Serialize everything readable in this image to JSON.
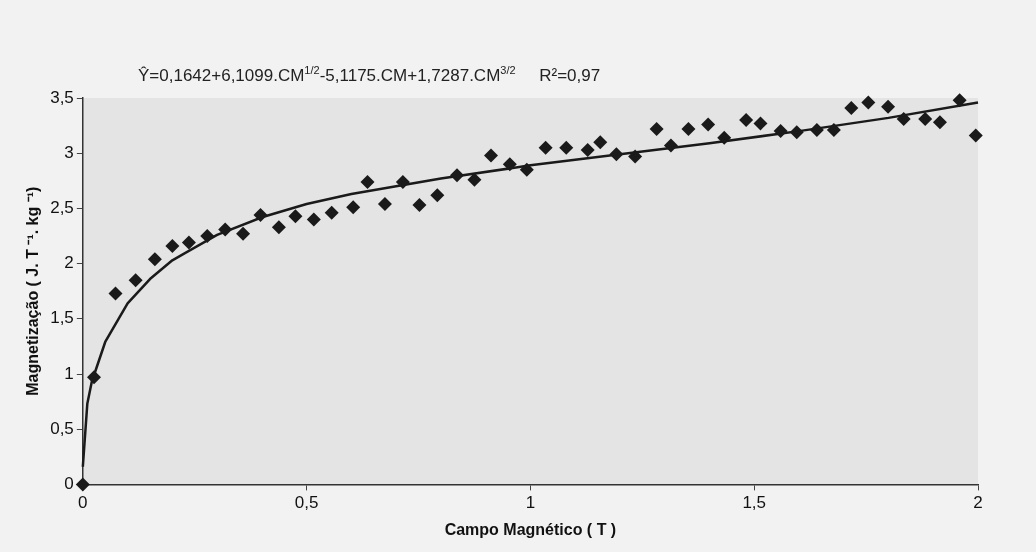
{
  "chart_data": {
    "type": "scatter",
    "title": "Ŷ=0,1642+6,1099.CM$^{1/2}$-5,1175.CM+1,7287.CM$^{3/2}$     R²=0,97",
    "xlabel": "Campo Magnético ( T )",
    "ylabel": "Magnetização ( J. T ⁻¹. kg ⁻¹)",
    "xlim": [
      0,
      2
    ],
    "ylim": [
      0,
      3.5
    ],
    "xticks": [
      0,
      {
        "value": 0.5,
        "label": "0,5"
      },
      1,
      {
        "value": 1.5,
        "label": "1,5"
      },
      2
    ],
    "yticks": [
      0,
      {
        "value": 0.5,
        "label": "0,5"
      },
      1,
      {
        "value": 1.5,
        "label": "1,5"
      },
      2,
      {
        "value": 2.5,
        "label": "2,5"
      },
      3,
      {
        "value": 3.5,
        "label": "3,5"
      }
    ],
    "grid": false,
    "legend": false,
    "marker": "diamond",
    "series": [
      {
        "color": "#1a1a1a",
        "x": [
          0,
          0.025,
          0.073,
          0.118,
          0.161,
          0.2,
          0.237,
          0.278,
          0.318,
          0.358,
          0.397,
          0.438,
          0.475,
          0.516,
          0.556,
          0.604,
          0.636,
          0.675,
          0.715,
          0.752,
          0.792,
          0.836,
          0.875,
          0.912,
          0.954,
          0.992,
          1.034,
          1.08,
          1.128,
          1.156,
          1.192,
          1.234,
          1.282,
          1.314,
          1.353,
          1.397,
          1.433,
          1.482,
          1.514,
          1.559,
          1.595,
          1.64,
          1.678,
          1.717,
          1.755,
          1.799,
          1.834,
          1.882,
          1.915,
          1.959,
          1.995
        ],
        "values": [
          0,
          0.97,
          1.73,
          1.85,
          2.04,
          2.16,
          2.19,
          2.25,
          2.31,
          2.27,
          2.44,
          2.33,
          2.43,
          2.4,
          2.46,
          2.51,
          2.74,
          2.54,
          2.74,
          2.53,
          2.62,
          2.8,
          2.76,
          2.98,
          2.9,
          2.85,
          3.05,
          3.05,
          3.03,
          3.1,
          2.99,
          2.97,
          3.22,
          3.07,
          3.22,
          3.26,
          3.14,
          3.3,
          3.27,
          3.2,
          3.19,
          3.21,
          3.21,
          3.41,
          3.46,
          3.42,
          3.31,
          3.31,
          3.28,
          3.48,
          3.16
        ]
      },
      {
        "type": "line",
        "color": "#1a1a1a",
        "marker": "none",
        "line_style": "solid",
        "x": [
          0,
          0.01,
          0.02,
          0.05,
          0.1,
          0.15,
          0.2,
          0.3,
          0.4,
          0.5,
          0.6,
          0.8,
          1.0,
          1.2,
          1.4,
          1.6,
          1.8,
          2.0
        ],
        "values": [
          0.16,
          0.73,
          0.93,
          1.29,
          1.64,
          1.86,
          2.03,
          2.26,
          2.42,
          2.54,
          2.63,
          2.77,
          2.89,
          2.99,
          3.09,
          3.2,
          3.32,
          3.46
        ]
      }
    ]
  }
}
